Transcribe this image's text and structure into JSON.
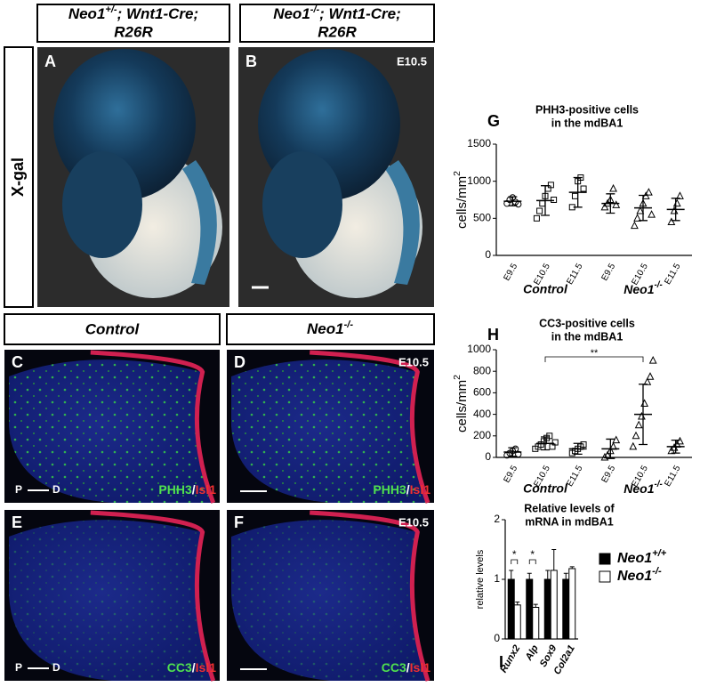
{
  "header": [
    {
      "gene": "Neo1",
      "sup": "+/-",
      "rest": "; Wnt1-Cre;",
      "line2": "R26R"
    },
    {
      "gene": "Neo1",
      "sup": "-/-",
      "rest": "; Wnt1-Cre;",
      "line2": "R26R"
    }
  ],
  "row_label": "X-gal",
  "section_headers": [
    {
      "text": "Control"
    },
    {
      "text": "Neo1",
      "sup": "-/-"
    }
  ],
  "panels": [
    {
      "letter": "A"
    },
    {
      "letter": "B",
      "stage": "E10.5"
    },
    {
      "letter": "C",
      "marker": "PHH3",
      "sep": "/",
      "counter": "Isl1",
      "orient": [
        "P",
        "D"
      ]
    },
    {
      "letter": "D",
      "stage": "E10.5",
      "marker": "PHH3",
      "sep": "/",
      "counter": "Isl1"
    },
    {
      "letter": "E",
      "marker": "CC3",
      "sep": "/",
      "counter": "Isl1",
      "orient": [
        "P",
        "D"
      ]
    },
    {
      "letter": "F",
      "stage": "E10.5",
      "marker": "CC3",
      "sep": "/",
      "counter": "Isl1"
    }
  ],
  "chart_data": [
    {
      "type": "dotplot",
      "letter": "G",
      "title": [
        "PHH3-positive cells",
        "in the mdBA1"
      ],
      "ylabel": {
        "text": "cells/mm",
        "sup": "2"
      },
      "ylim": [
        0,
        1500
      ],
      "yticks": [
        0,
        500,
        1000,
        1500
      ],
      "categories": [
        "E9.5",
        "E10.5",
        "E11.5",
        "E9.5",
        "E10.5",
        "E11.5"
      ],
      "group_labels": [
        {
          "text": "Control"
        },
        {
          "text": "Neo1",
          "sup": "-/-"
        }
      ],
      "groups": [
        {
          "marker": "circle",
          "mean": 730,
          "sd": 60,
          "points": [
            700,
            750,
            780,
            720,
            690
          ]
        },
        {
          "marker": "square",
          "mean": 740,
          "sd": 200,
          "points": [
            500,
            600,
            700,
            800,
            900,
            950,
            750
          ]
        },
        {
          "marker": "square",
          "mean": 850,
          "sd": 200,
          "points": [
            650,
            800,
            1000,
            1050,
            900
          ]
        },
        {
          "marker": "triangle",
          "mean": 700,
          "sd": 130,
          "points": [
            650,
            700,
            750,
            900,
            680
          ]
        },
        {
          "marker": "triangle",
          "mean": 640,
          "sd": 170,
          "points": [
            400,
            500,
            600,
            700,
            800,
            850,
            550
          ]
        },
        {
          "marker": "triangle",
          "mean": 620,
          "sd": 150,
          "points": [
            450,
            600,
            700,
            800
          ]
        }
      ]
    },
    {
      "type": "dotplot",
      "letter": "H",
      "title": [
        "CC3-positive cells",
        "in the mdBA1"
      ],
      "ylabel": {
        "text": "cells/mm",
        "sup": "2"
      },
      "ylim": [
        0,
        1000
      ],
      "yticks": [
        0,
        200,
        400,
        600,
        800,
        1000
      ],
      "categories": [
        "E9.5",
        "E10.5",
        "E11.5",
        "E9.5",
        "E10.5",
        "E11.5"
      ],
      "group_labels": [
        {
          "text": "Control"
        },
        {
          "text": "Neo1",
          "sup": "-/-"
        }
      ],
      "significance": [
        {
          "label": "**",
          "between": [
            1,
            4
          ]
        }
      ],
      "groups": [
        {
          "marker": "circle",
          "mean": 50,
          "sd": 40,
          "points": [
            20,
            40,
            60,
            80,
            30
          ]
        },
        {
          "marker": "square",
          "mean": 130,
          "sd": 60,
          "points": [
            80,
            100,
            120,
            150,
            180,
            200,
            100,
            140
          ]
        },
        {
          "marker": "square",
          "mean": 80,
          "sd": 50,
          "points": [
            40,
            60,
            80,
            100,
            120
          ]
        },
        {
          "marker": "triangle",
          "mean": 80,
          "sd": 90,
          "points": [
            0,
            20,
            60,
            100,
            160
          ]
        },
        {
          "marker": "triangle",
          "mean": 400,
          "sd": 280,
          "points": [
            100,
            200,
            300,
            380,
            500,
            700,
            750,
            900
          ]
        },
        {
          "marker": "triangle",
          "mean": 100,
          "sd": 60,
          "points": [
            60,
            90,
            120,
            150
          ]
        }
      ]
    },
    {
      "type": "bar",
      "letter": "I",
      "title": [
        "Relative levels of",
        "mRNA in mdBA1"
      ],
      "ylabel": {
        "text": "relative levels"
      },
      "ylim": [
        0,
        2
      ],
      "yticks": [
        0,
        1,
        2
      ],
      "categories": [
        "Runx2",
        "Alp",
        "Sox9",
        "Col2a1"
      ],
      "significance": [
        {
          "label": "*",
          "category": 0
        },
        {
          "label": "*",
          "category": 1
        }
      ],
      "series": [
        {
          "name": "Neo1",
          "name_sup": "+/+",
          "color": "#000000",
          "values": [
            1.0,
            1.0,
            1.0,
            1.0
          ],
          "errors": [
            0.15,
            0.1,
            0.15,
            0.1
          ]
        },
        {
          "name": "Neo1",
          "name_sup": "-/-",
          "color": "#ffffff",
          "values": [
            0.57,
            0.53,
            1.15,
            1.18
          ],
          "errors": [
            0.05,
            0.05,
            0.35,
            0.03
          ]
        }
      ]
    }
  ]
}
